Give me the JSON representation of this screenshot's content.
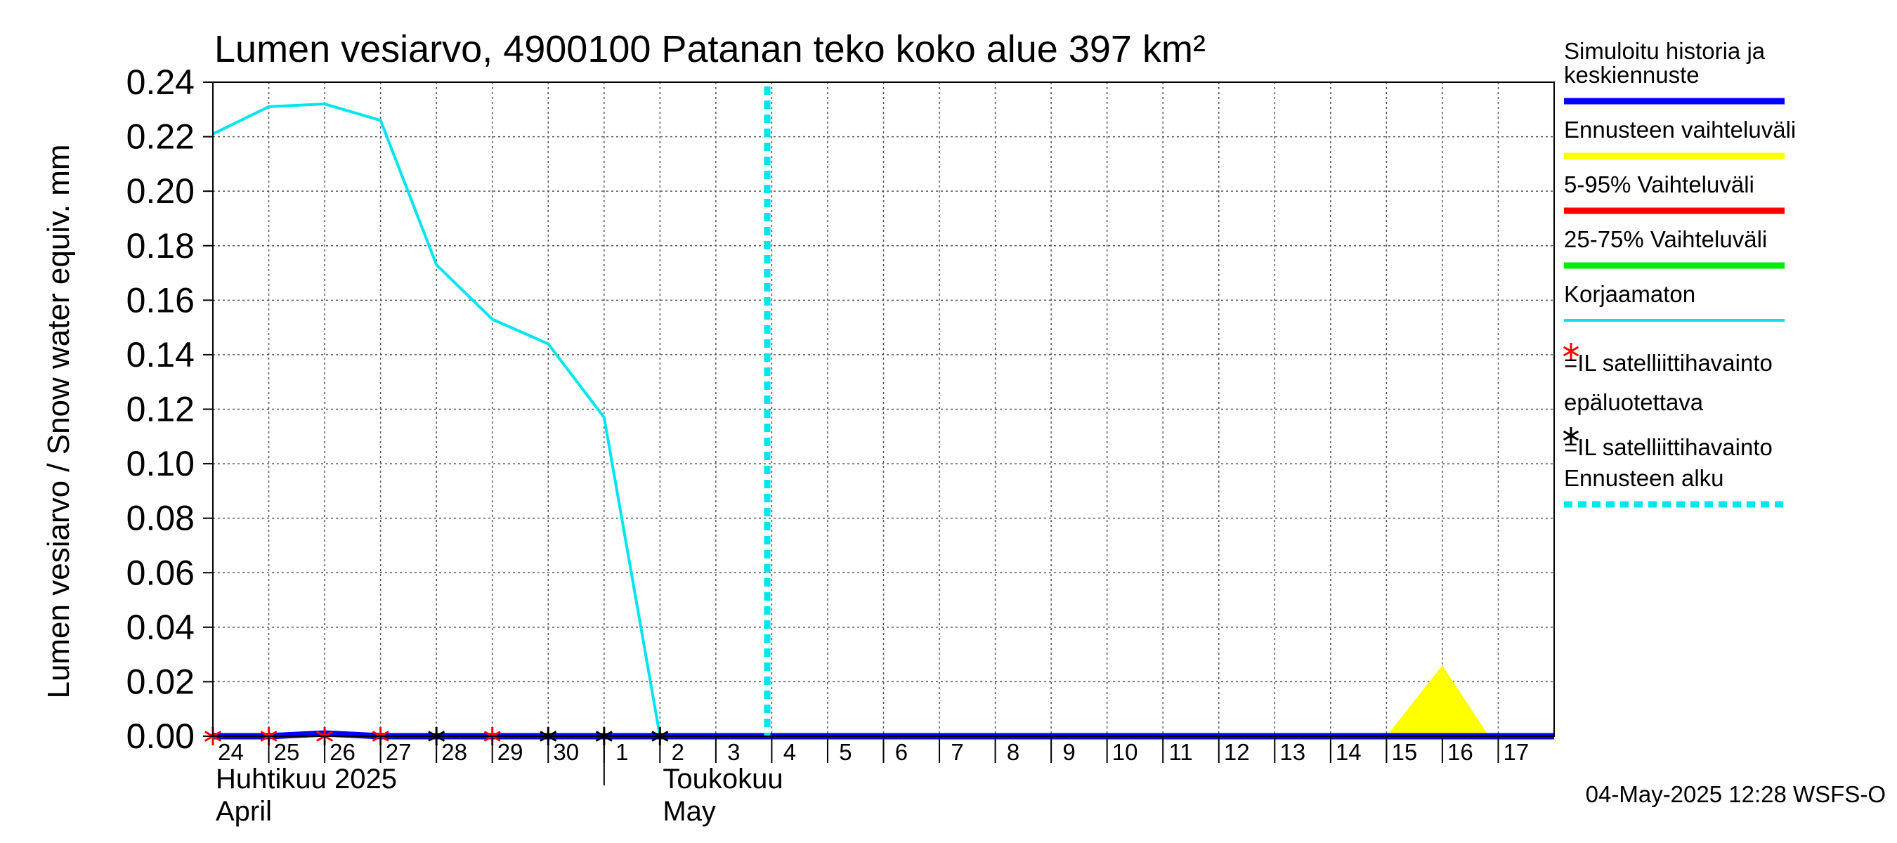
{
  "chart_data": {
    "type": "line",
    "title": "Lumen vesiarvo, 4900100 Patanan teko koko alue 397 km²",
    "ylabel": "Lumen vesiarvo / Snow water equiv.    mm",
    "ylim": [
      0,
      0.24
    ],
    "yticks": [
      "0.00",
      "0.02",
      "0.04",
      "0.06",
      "0.08",
      "0.10",
      "0.12",
      "0.14",
      "0.16",
      "0.18",
      "0.20",
      "0.22",
      "0.24"
    ],
    "xlim": [
      "2025-04-24",
      "2025-05-18"
    ],
    "xtick_labels": [
      {
        "date": "2025-04-24",
        "label": "24"
      },
      {
        "date": "2025-04-25",
        "label": "25"
      },
      {
        "date": "2025-04-26",
        "label": "26"
      },
      {
        "date": "2025-04-27",
        "label": "27"
      },
      {
        "date": "2025-04-28",
        "label": "28"
      },
      {
        "date": "2025-04-29",
        "label": "29"
      },
      {
        "date": "2025-04-30",
        "label": "30"
      },
      {
        "date": "2025-05-01",
        "label": "1"
      },
      {
        "date": "2025-05-02",
        "label": "2"
      },
      {
        "date": "2025-05-03",
        "label": "3"
      },
      {
        "date": "2025-05-04",
        "label": "4"
      },
      {
        "date": "2025-05-05",
        "label": "5"
      },
      {
        "date": "2025-05-06",
        "label": "6"
      },
      {
        "date": "2025-05-07",
        "label": "7"
      },
      {
        "date": "2025-05-08",
        "label": "8"
      },
      {
        "date": "2025-05-09",
        "label": "9"
      },
      {
        "date": "2025-05-10",
        "label": "10"
      },
      {
        "date": "2025-05-11",
        "label": "11"
      },
      {
        "date": "2025-05-12",
        "label": "12"
      },
      {
        "date": "2025-05-13",
        "label": "13"
      },
      {
        "date": "2025-05-14",
        "label": "14"
      },
      {
        "date": "2025-05-15",
        "label": "15"
      },
      {
        "date": "2025-05-16",
        "label": "16"
      },
      {
        "date": "2025-05-17",
        "label": "17"
      }
    ],
    "month_labels": [
      {
        "date": "2025-04-24",
        "lines": [
          "Huhtikuu  2025",
          "April"
        ]
      },
      {
        "date": "2025-05-02",
        "lines": [
          "Toukokuu",
          "May"
        ]
      }
    ],
    "month_separator_date": "2025-05-01",
    "forecast_start_date": "2025-05-04",
    "series": [
      {
        "name": "Korjaamaton",
        "color": "#00e5ee",
        "points": [
          [
            "2025-04-24",
            0.221
          ],
          [
            "2025-04-25",
            0.231
          ],
          [
            "2025-04-26",
            0.232
          ],
          [
            "2025-04-27",
            0.226
          ],
          [
            "2025-04-28",
            0.173
          ],
          [
            "2025-04-29",
            0.153
          ],
          [
            "2025-04-30",
            0.144
          ],
          [
            "2025-05-01",
            0.117
          ],
          [
            "2025-05-02",
            0.0
          ]
        ]
      },
      {
        "name": "Simuloitu historia ja keskiennuste",
        "color": "#0000ff",
        "points": [
          [
            "2025-04-24",
            0.0
          ],
          [
            "2025-04-25",
            0.0
          ],
          [
            "2025-04-26",
            0.001
          ],
          [
            "2025-04-27",
            0.0
          ],
          [
            "2025-05-18",
            0.0
          ]
        ]
      }
    ],
    "range_band": {
      "name": "Ennusteen vaihteluväli",
      "color": "#ffff00",
      "points": [
        [
          "2025-05-05",
          0.0
        ],
        [
          "2025-05-06",
          0.0
        ],
        [
          "2025-05-06T12:00",
          0.001
        ],
        [
          "2025-05-07",
          0.0
        ],
        [
          "2025-05-15",
          0.0
        ],
        [
          "2025-05-16",
          0.026
        ],
        [
          "2025-05-16T20:00",
          0.0
        ]
      ]
    },
    "observations_unreliable": {
      "color": "#ff0000",
      "dates": [
        "2025-04-24",
        "2025-04-25",
        "2025-04-26",
        "2025-04-27",
        "2025-04-29"
      ],
      "value": 0.0
    },
    "observations": {
      "color": "#000000",
      "dates": [
        "2025-04-28",
        "2025-04-30",
        "2025-05-01",
        "2025-05-02"
      ],
      "value": 0.0
    },
    "legend_position": "right",
    "legend": [
      {
        "kind": "line",
        "label": "Simuloitu historia ja keskiennuste",
        "label_lines": [
          "Simuloitu historia ja",
          "keskiennuste"
        ],
        "color": "#0000ff"
      },
      {
        "kind": "line",
        "label": "Ennusteen vaihteluväli",
        "label_lines": [
          "Ennusteen vaihteluväli"
        ],
        "color": "#ffff00"
      },
      {
        "kind": "line",
        "label": "5-95% Vaihteluväli",
        "label_lines": [
          "5-95% Vaihteluväli"
        ],
        "color": "#ff0000"
      },
      {
        "kind": "line",
        "label": "25-75% Vaihteluväli",
        "label_lines": [
          "25-75% Vaihteluväli"
        ],
        "color": "#00ee00"
      },
      {
        "kind": "thin",
        "label": "Korjaamaton",
        "label_lines": [
          "Korjaamaton"
        ],
        "color": "#00e5ee"
      },
      {
        "kind": "star",
        "label": "=IL satelliittihavainto epäluotettava",
        "label_lines": [
          "=IL satelliittihavainto",
          "epäluotettava"
        ],
        "color": "#ff0000"
      },
      {
        "kind": "star",
        "label": "=IL satelliittihavainto",
        "label_lines": [
          "=IL satelliittihavainto"
        ],
        "color": "#000000"
      },
      {
        "kind": "dashed",
        "label": "Ennusteen alku",
        "label_lines": [
          "Ennusteen alku"
        ],
        "color": "#00e5ee"
      }
    ],
    "footer": "04-May-2025 12:28 WSFS-O"
  }
}
